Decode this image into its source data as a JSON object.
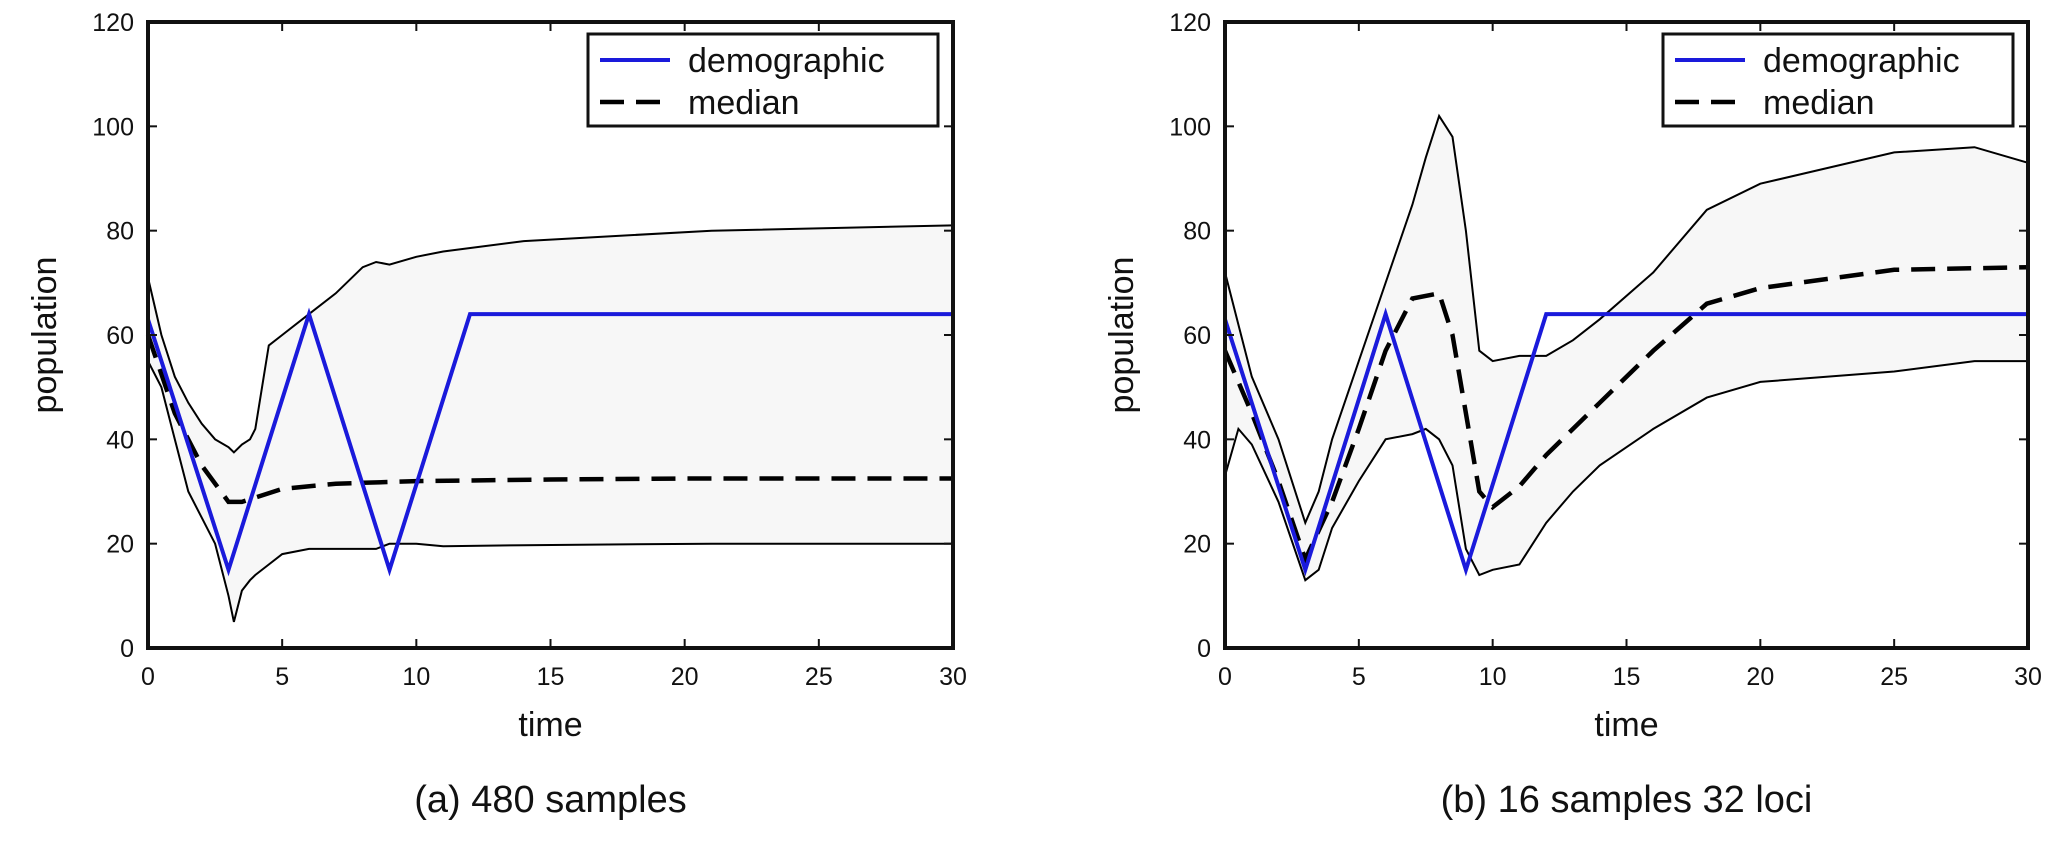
{
  "chart_data": [
    {
      "type": "line",
      "caption": "(a) 480 samples",
      "xlabel": "time",
      "ylabel": "population",
      "xlim": [
        0,
        30
      ],
      "ylim": [
        0,
        120
      ],
      "xticks": [
        0,
        5,
        10,
        15,
        20,
        25,
        30
      ],
      "yticks": [
        0,
        20,
        40,
        60,
        80,
        100,
        120
      ],
      "legend_position": "top-right",
      "legend": [
        "demographic",
        "median"
      ],
      "colors": {
        "demographic": "#1a1adb",
        "median": "#000000",
        "band_fill": "#f7f7f7",
        "band_edge": "#000000"
      },
      "series": [
        {
          "name": "demographic",
          "style": "solid",
          "x": [
            0,
            3,
            6,
            9,
            12,
            30
          ],
          "y": [
            63,
            15,
            64,
            15,
            64,
            64
          ]
        },
        {
          "name": "median",
          "style": "dashed",
          "x": [
            0,
            1,
            2,
            3,
            3.5,
            5,
            7,
            10,
            15,
            20,
            30
          ],
          "y": [
            60,
            45,
            35,
            28,
            28,
            30.5,
            31.5,
            32,
            32.3,
            32.5,
            32.5
          ]
        }
      ],
      "band": {
        "x": [
          0,
          0.5,
          1,
          1.5,
          2,
          2.5,
          3,
          3.2,
          3.5,
          3.8,
          4,
          4.5,
          5,
          6,
          7,
          8,
          8.5,
          9,
          10,
          11,
          14,
          21,
          30
        ],
        "upper": [
          71,
          60,
          52,
          47,
          43,
          40,
          38.5,
          37.5,
          39,
          40,
          42,
          58,
          60,
          64,
          68,
          73,
          74,
          73.5,
          75,
          76,
          78,
          80,
          81
        ],
        "lower": [
          55,
          50,
          40,
          30,
          25,
          20,
          10,
          5,
          11,
          13,
          14,
          16,
          18,
          19,
          19,
          19,
          19,
          20,
          20,
          19.5,
          19.7,
          20,
          20
        ]
      }
    },
    {
      "type": "line",
      "caption": "(b) 16 samples 32 loci",
      "xlabel": "time",
      "ylabel": "population",
      "xlim": [
        0,
        30
      ],
      "ylim": [
        0,
        120
      ],
      "xticks": [
        0,
        5,
        10,
        15,
        20,
        25,
        30
      ],
      "yticks": [
        0,
        20,
        40,
        60,
        80,
        100,
        120
      ],
      "legend_position": "top-right",
      "legend": [
        "demographic",
        "median"
      ],
      "colors": {
        "demographic": "#1a1adb",
        "median": "#000000",
        "band_fill": "#f7f7f7",
        "band_edge": "#000000"
      },
      "series": [
        {
          "name": "demographic",
          "style": "solid",
          "x": [
            0,
            3,
            6,
            9,
            12,
            30
          ],
          "y": [
            63,
            15,
            64,
            15,
            64,
            64
          ]
        },
        {
          "name": "median",
          "style": "dashed",
          "x": [
            0,
            1,
            2,
            3,
            4,
            5,
            6,
            6.5,
            7,
            8,
            8.5,
            9,
            9.5,
            10,
            11,
            12,
            14,
            16,
            18,
            20,
            25,
            30
          ],
          "y": [
            57,
            45,
            32,
            17,
            28,
            42,
            57,
            62,
            67,
            68,
            60,
            45,
            30,
            27,
            31,
            37,
            47,
            57,
            66,
            69,
            72.5,
            73
          ]
        }
      ],
      "band": {
        "x": [
          0,
          0.5,
          1,
          2,
          3,
          3.5,
          4,
          5,
          6,
          7,
          7.5,
          8,
          8.5,
          9,
          9.5,
          10,
          11,
          12,
          13,
          14,
          16,
          18,
          20,
          25,
          28,
          30
        ],
        "upper": [
          72,
          62,
          52,
          40,
          24,
          30,
          40,
          55,
          70,
          85,
          94,
          102,
          98,
          80,
          57,
          55,
          56,
          56,
          59,
          63,
          72,
          84,
          89,
          95,
          96,
          93
        ],
        "lower": [
          33,
          42,
          39,
          28,
          13,
          15,
          23,
          32,
          40,
          41,
          42,
          40,
          35,
          19,
          14,
          15,
          16,
          24,
          30,
          35,
          42,
          48,
          51,
          53,
          55,
          55
        ]
      }
    }
  ]
}
